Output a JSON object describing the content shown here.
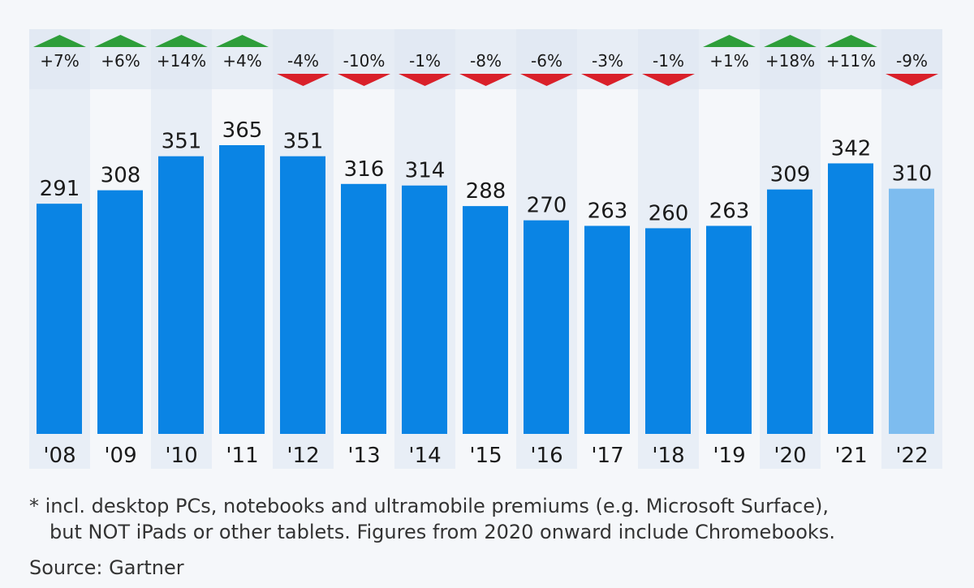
{
  "chart_data": {
    "type": "bar",
    "categories": [
      "'08",
      "'09",
      "'10",
      "'11",
      "'12",
      "'13",
      "'14",
      "'15",
      "'16",
      "'17",
      "'18",
      "'19",
      "'20",
      "'21",
      "'22"
    ],
    "values": [
      291,
      308,
      351,
      365,
      351,
      316,
      314,
      288,
      270,
      263,
      260,
      263,
      309,
      342,
      310
    ],
    "changes": [
      "+7%",
      "+6%",
      "+14%",
      "+4%",
      "-4%",
      "-10%",
      "-1%",
      "-8%",
      "-6%",
      "-3%",
      "-1%",
      "+1%",
      "+18%",
      "+11%",
      "-9%"
    ],
    "highlighted_last_bar": true,
    "ylim": [
      0,
      365
    ],
    "grid": false,
    "colors": {
      "bar": "#0a84e4",
      "bar_last": "#7dbcef",
      "up": "#2e9e3a",
      "down": "#d9202a",
      "shade": "#e8eef6",
      "band": "#e2e9f3"
    }
  },
  "footnote": {
    "line1": "* incl. desktop PCs, notebooks and ultramobile premiums (e.g. Microsoft Surface),",
    "line2": "but NOT iPads or other tablets. Figures from 2020 onward include Chromebooks.",
    "source": "Source: Gartner"
  }
}
